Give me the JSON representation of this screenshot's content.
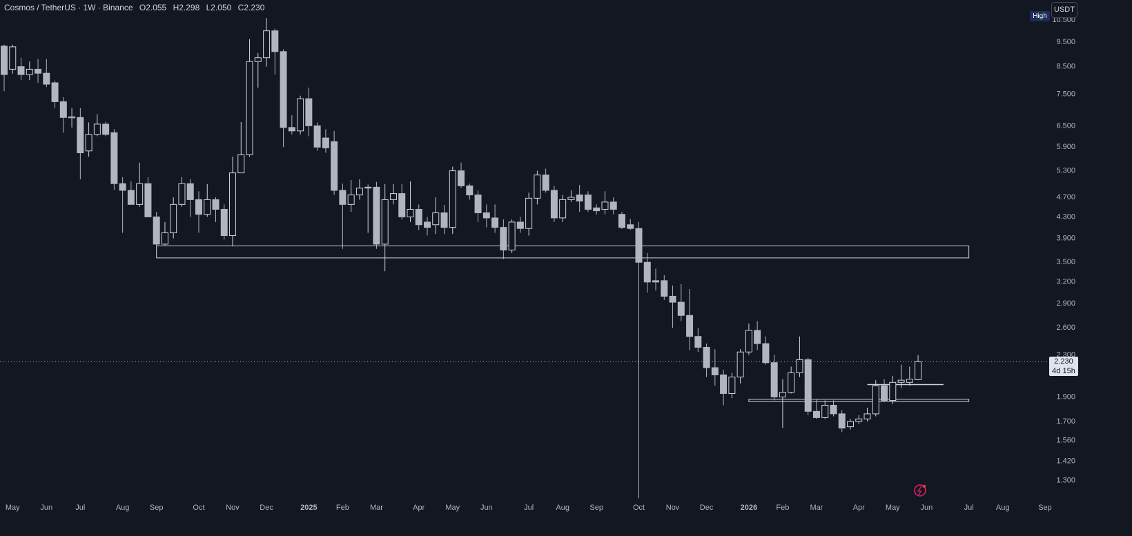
{
  "header": {
    "symbol": "Cosmos / TetherUS · 1W · Binance",
    "ohlc": [
      "O2.055",
      "H2.298",
      "L2.050",
      "C2.230"
    ]
  },
  "ui": {
    "currency": "USDT",
    "badge": "High",
    "last_price": "2.230",
    "countdown": "4d 15h"
  },
  "chart_data": {
    "type": "candlestick",
    "log": true,
    "up_color": "#d1d4dc",
    "down_color": "#b2b5be",
    "ylim": [
      1.19,
      11.5
    ],
    "yticks": [
      {
        "value": 10.5,
        "label": "10.500"
      },
      {
        "value": 9.5,
        "label": "9.500"
      },
      {
        "value": 8.5,
        "label": "8.500"
      },
      {
        "value": 7.5,
        "label": "7.500"
      },
      {
        "value": 6.5,
        "label": "6.500"
      },
      {
        "value": 5.9,
        "label": "5.900"
      },
      {
        "value": 5.3,
        "label": "5.300"
      },
      {
        "value": 4.7,
        "label": "4.700"
      },
      {
        "value": 4.3,
        "label": "4.300"
      },
      {
        "value": 3.9,
        "label": "3.900"
      },
      {
        "value": 3.5,
        "label": "3.500"
      },
      {
        "value": 3.2,
        "label": "3.200"
      },
      {
        "value": 2.9,
        "label": "2.900"
      },
      {
        "value": 2.6,
        "label": "2.600"
      },
      {
        "value": 2.3,
        "label": "2.300"
      },
      {
        "value": 1.9,
        "label": "1.900"
      },
      {
        "value": 1.7,
        "label": "1.700"
      },
      {
        "value": 1.56,
        "label": "1.560"
      },
      {
        "value": 1.42,
        "label": "1.420"
      },
      {
        "value": 1.3,
        "label": "1.300"
      }
    ],
    "categories": [
      null,
      "May",
      null,
      null,
      null,
      "Jun",
      null,
      null,
      null,
      "Jul",
      null,
      null,
      null,
      null,
      "Aug",
      null,
      null,
      null,
      "Sep",
      null,
      null,
      null,
      null,
      "Oct",
      null,
      null,
      null,
      "Nov",
      null,
      null,
      null,
      "Dec",
      null,
      null,
      null,
      null,
      "2025",
      null,
      null,
      null,
      "Feb",
      null,
      null,
      null,
      "Mar",
      null,
      null,
      null,
      null,
      "Apr",
      null,
      null,
      null,
      "May",
      null,
      null,
      null,
      "Jun",
      null,
      null,
      null,
      null,
      "Jul",
      null,
      null,
      null,
      "Aug",
      null,
      null,
      null,
      "Sep",
      null,
      null,
      null,
      null,
      "Oct",
      null,
      null,
      null,
      "Nov",
      null,
      null,
      null,
      "Dec",
      null,
      null,
      null,
      null,
      "2026",
      null,
      null,
      null,
      "Feb",
      null,
      null,
      null,
      "Mar",
      null,
      null,
      null,
      null,
      "Apr",
      null,
      null,
      null,
      "May",
      null,
      null,
      null,
      "Jun",
      null,
      null,
      null,
      null,
      "Jul",
      null,
      null,
      null,
      "Aug",
      null,
      null,
      null,
      null,
      "Sep"
    ],
    "open": [
      9.33,
      8.4,
      8.5,
      8.2,
      8.4,
      8.25,
      7.9,
      7.25,
      6.74,
      6.75,
      5.8,
      6.25,
      6.55,
      6.3,
      5.0,
      4.85,
      4.55,
      5.0,
      4.3,
      3.8,
      4.0,
      4.55,
      5.0,
      4.65,
      4.35,
      4.65,
      4.45,
      3.95,
      5.25,
      5.7,
      8.7,
      8.85,
      10.0,
      9.1,
      6.45,
      6.35,
      7.35,
      6.5,
      6.15,
      6.05,
      4.85,
      4.55,
      4.75,
      4.9,
      4.92,
      3.8,
      4.65,
      4.78,
      4.3,
      4.45,
      4.2,
      4.15,
      4.38,
      4.1,
      5.3,
      4.95,
      4.75,
      4.38,
      4.28,
      4.1,
      3.7,
      4.2,
      4.08,
      4.68,
      5.2,
      4.85,
      4.28,
      4.65,
      4.75,
      4.75,
      4.48,
      4.45,
      4.6,
      4.35,
      4.15,
      4.08,
      3.5,
      3.22,
      3.22,
      3.0,
      2.92,
      2.75,
      2.5,
      2.38,
      2.17,
      2.1,
      1.93,
      2.08,
      2.33,
      2.57,
      2.42,
      2.22,
      1.9,
      1.94,
      2.12,
      2.25,
      1.78,
      1.73,
      1.83,
      1.76,
      1.66,
      1.7,
      1.72,
      1.76,
      2.0,
      1.87,
      2.03,
      2.03,
      2.055,
      null,
      null,
      null,
      null,
      null,
      null,
      null,
      null,
      null,
      null,
      null,
      null,
      null,
      null,
      null
    ],
    "high": [
      9.39,
      9.39,
      8.85,
      8.7,
      8.8,
      8.8,
      7.98,
      7.4,
      7.04,
      7.04,
      6.6,
      6.85,
      6.62,
      6.4,
      5.15,
      5.05,
      5.5,
      5.15,
      4.4,
      4.2,
      4.7,
      5.15,
      5.1,
      4.83,
      4.99,
      4.7,
      4.55,
      5.65,
      6.61,
      9.63,
      9.04,
      10.6,
      10.1,
      9.2,
      6.82,
      7.45,
      7.73,
      6.6,
      6.4,
      6.35,
      5.0,
      5.08,
      5.1,
      4.98,
      5.04,
      4.99,
      4.99,
      4.99,
      5.05,
      4.55,
      4.3,
      4.7,
      4.54,
      5.4,
      5.5,
      5.0,
      4.85,
      4.55,
      4.55,
      4.25,
      4.25,
      4.3,
      4.8,
      5.3,
      5.35,
      4.95,
      4.75,
      4.85,
      4.97,
      4.83,
      4.55,
      4.83,
      4.7,
      4.4,
      4.26,
      4.2,
      3.65,
      3.4,
      3.3,
      3.15,
      3.17,
      3.1,
      2.6,
      2.42,
      2.36,
      2.15,
      2.12,
      2.36,
      2.65,
      2.68,
      2.5,
      2.3,
      2.06,
      2.18,
      2.5,
      2.27,
      1.88,
      1.87,
      1.87,
      1.79,
      1.72,
      1.75,
      1.81,
      2.05,
      2.06,
      2.09,
      2.2,
      2.18,
      2.298,
      null,
      null,
      null,
      null,
      null,
      null,
      null,
      null,
      null,
      null,
      null,
      null,
      null,
      null,
      null
    ],
    "low": [
      7.6,
      8.23,
      8.0,
      8.0,
      7.9,
      7.75,
      7.05,
      6.3,
      6.45,
      5.1,
      5.65,
      6.2,
      6.2,
      4.86,
      4.0,
      4.55,
      4.5,
      4.3,
      3.7,
      3.78,
      3.9,
      4.5,
      4.3,
      4.0,
      4.3,
      4.2,
      3.88,
      3.76,
      5.25,
      5.65,
      7.73,
      8.5,
      8.2,
      5.9,
      6.25,
      6.25,
      6.2,
      5.8,
      5.75,
      4.75,
      3.72,
      4.4,
      4.65,
      4.0,
      3.72,
      3.36,
      4.55,
      4.25,
      4.2,
      4.05,
      3.95,
      3.98,
      3.98,
      3.98,
      4.9,
      4.65,
      4.2,
      4.1,
      4.0,
      3.55,
      3.65,
      4.0,
      3.95,
      4.55,
      4.8,
      4.2,
      4.2,
      4.6,
      4.4,
      4.4,
      4.35,
      4.35,
      4.35,
      4.07,
      4.05,
      1.2,
      3.05,
      3.08,
      2.95,
      2.6,
      2.68,
      2.35,
      2.33,
      2.08,
      2.0,
      1.83,
      1.89,
      2.02,
      2.3,
      2.35,
      2.2,
      1.87,
      1.65,
      1.93,
      2.08,
      1.75,
      1.72,
      1.72,
      1.74,
      1.62,
      1.64,
      1.68,
      1.7,
      1.74,
      1.86,
      1.84,
      1.98,
      2.0,
      2.05,
      null,
      null,
      null,
      null,
      null,
      null,
      null,
      null,
      null,
      null,
      null,
      null,
      null,
      null,
      null
    ],
    "close": [
      8.2,
      9.3,
      8.2,
      8.4,
      8.25,
      7.85,
      7.25,
      6.75,
      6.77,
      5.75,
      6.25,
      6.55,
      6.25,
      5.0,
      4.85,
      4.55,
      5.0,
      4.3,
      3.8,
      4.0,
      4.55,
      5.0,
      4.65,
      4.35,
      4.65,
      4.45,
      3.95,
      5.25,
      5.7,
      8.7,
      8.85,
      10.0,
      9.1,
      6.45,
      6.35,
      7.35,
      6.5,
      5.9,
      5.88,
      4.85,
      4.55,
      4.75,
      4.9,
      4.92,
      3.8,
      4.65,
      4.78,
      4.3,
      4.45,
      4.15,
      4.1,
      4.38,
      4.1,
      5.3,
      4.95,
      4.75,
      4.38,
      4.28,
      4.1,
      3.7,
      4.2,
      4.08,
      4.68,
      5.2,
      4.85,
      4.28,
      4.65,
      4.7,
      4.62,
      4.45,
      4.42,
      4.6,
      4.45,
      4.1,
      4.08,
      3.5,
      3.2,
      3.2,
      3.0,
      2.92,
      2.75,
      2.5,
      2.38,
      2.17,
      2.1,
      1.93,
      2.08,
      2.33,
      2.57,
      2.42,
      2.22,
      1.9,
      1.94,
      2.12,
      2.25,
      1.78,
      1.73,
      1.83,
      1.76,
      1.65,
      1.7,
      1.72,
      1.76,
      2.0,
      1.87,
      2.03,
      2.05,
      2.06,
      2.23,
      null,
      null,
      null,
      null,
      null,
      null,
      null,
      null,
      null,
      null,
      null,
      null,
      null,
      null,
      null
    ],
    "zones": [
      {
        "from": 18,
        "to": 114,
        "low": 3.57,
        "high": 3.77
      },
      {
        "from": 88,
        "to": 114,
        "low": 1.86,
        "high": 1.88
      }
    ],
    "levels": [
      {
        "from": 102,
        "to": 111,
        "value": 2.01
      }
    ]
  }
}
